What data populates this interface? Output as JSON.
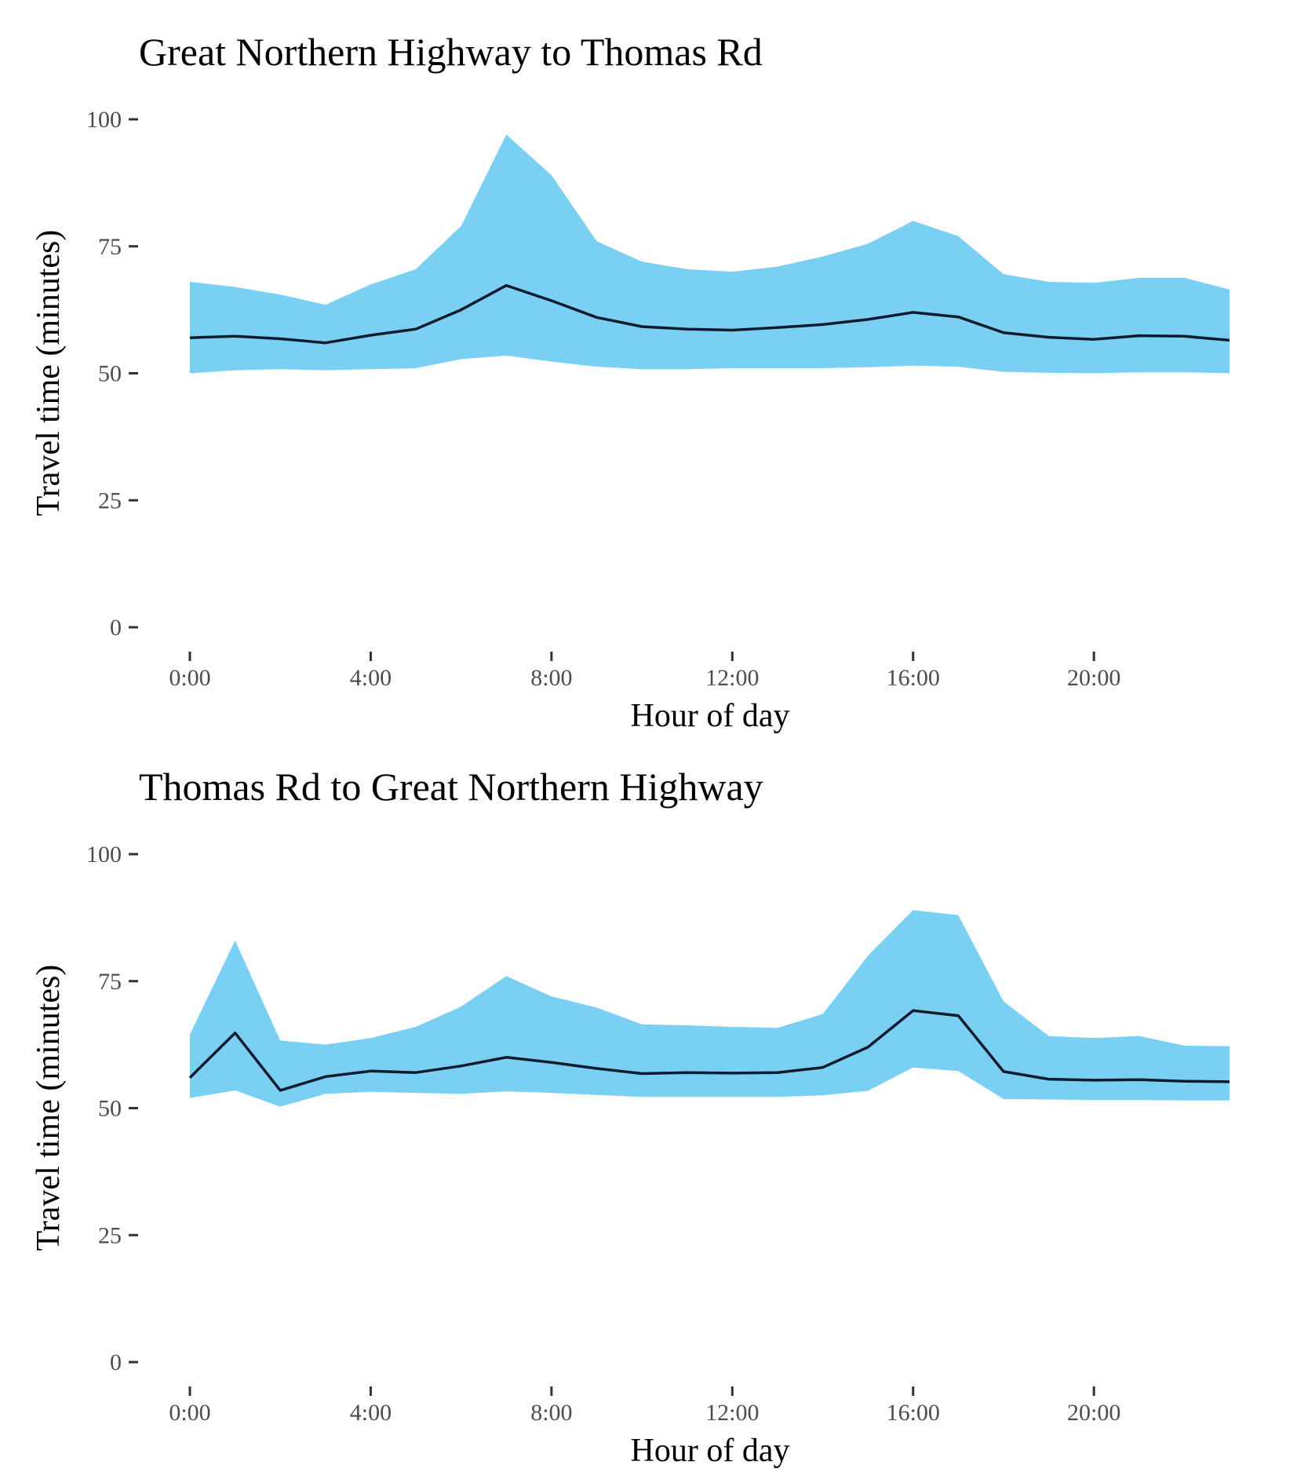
{
  "chart_data": [
    {
      "type": "area",
      "title": "Great Northern Highway to Thomas Rd",
      "xlabel": "Hour of day",
      "ylabel": "Travel time (minutes)",
      "ylim": [
        0,
        100
      ],
      "xlim": [
        0,
        23
      ],
      "grid": false,
      "x_ticks": [
        0,
        4,
        8,
        12,
        16,
        20
      ],
      "x_tick_labels": [
        "0:00",
        "4:00",
        "8:00",
        "12:00",
        "16:00",
        "20:00"
      ],
      "y_ticks": [
        0,
        25,
        50,
        75,
        100
      ],
      "y_tick_labels": [
        "0",
        "25",
        "50",
        "75",
        "100"
      ],
      "colors": {
        "band": "#7ad0f3",
        "line": "#0d1b2e"
      },
      "x": [
        0,
        1,
        2,
        3,
        4,
        5,
        6,
        7,
        8,
        9,
        10,
        11,
        12,
        13,
        14,
        15,
        16,
        17,
        18,
        19,
        20,
        21,
        22,
        23
      ],
      "series": [
        {
          "role": "band_upper",
          "values": [
            68,
            67,
            65.5,
            63.5,
            67.5,
            70.5,
            79,
            97,
            89,
            76,
            72,
            70.5,
            70,
            71,
            73,
            75.5,
            80,
            77,
            69.5,
            68,
            67.8,
            68.8,
            68.8,
            66.5
          ]
        },
        {
          "role": "line",
          "values": [
            57,
            57.3,
            56.8,
            56,
            57.5,
            58.7,
            62.5,
            67.3,
            64.3,
            61,
            59.2,
            58.7,
            58.5,
            59,
            59.6,
            60.6,
            62,
            61.1,
            58,
            57.1,
            56.7,
            57.4,
            57.3,
            56.5
          ]
        },
        {
          "role": "band_lower",
          "values": [
            50,
            50.6,
            50.8,
            50.6,
            50.8,
            51,
            52.8,
            53.5,
            52.3,
            51.3,
            50.8,
            50.8,
            51,
            51,
            51,
            51.2,
            51.5,
            51.3,
            50.3,
            50.1,
            50,
            50.2,
            50.2,
            50
          ]
        }
      ]
    },
    {
      "type": "area",
      "title": "Thomas Rd to Great Northern Highway",
      "xlabel": "Hour of day",
      "ylabel": "Travel time (minutes)",
      "ylim": [
        0,
        100
      ],
      "xlim": [
        0,
        23
      ],
      "grid": false,
      "x_ticks": [
        0,
        4,
        8,
        12,
        16,
        20
      ],
      "x_tick_labels": [
        "0:00",
        "4:00",
        "8:00",
        "12:00",
        "16:00",
        "20:00"
      ],
      "y_ticks": [
        0,
        25,
        50,
        75,
        100
      ],
      "y_tick_labels": [
        "0",
        "25",
        "50",
        "75",
        "100"
      ],
      "colors": {
        "band": "#7ad0f3",
        "line": "#0d1b2e"
      },
      "x": [
        0,
        1,
        2,
        3,
        4,
        5,
        6,
        7,
        8,
        9,
        10,
        11,
        12,
        13,
        14,
        15,
        16,
        17,
        18,
        19,
        20,
        21,
        22,
        23
      ],
      "series": [
        {
          "role": "band_upper",
          "values": [
            64.5,
            83,
            63.3,
            62.5,
            63.8,
            66,
            70,
            76,
            72,
            69.8,
            66.5,
            66.3,
            66,
            65.8,
            68.5,
            80,
            89,
            88,
            71,
            64.2,
            63.8,
            64.2,
            62.3,
            62.2
          ]
        },
        {
          "role": "line",
          "values": [
            56,
            64.8,
            53.5,
            56.2,
            57.3,
            57,
            58.3,
            60,
            59,
            57.8,
            56.8,
            57,
            56.9,
            57,
            58,
            62,
            69.2,
            68.2,
            57.2,
            55.7,
            55.5,
            55.6,
            55.3,
            55.2
          ]
        },
        {
          "role": "band_lower",
          "values": [
            52,
            53.5,
            50.3,
            52.8,
            53.2,
            53,
            52.8,
            53.3,
            53,
            52.6,
            52.2,
            52.2,
            52.2,
            52.2,
            52.5,
            53.4,
            58,
            57.3,
            51.8,
            51.7,
            51.6,
            51.6,
            51.5,
            51.5
          ]
        }
      ]
    }
  ]
}
